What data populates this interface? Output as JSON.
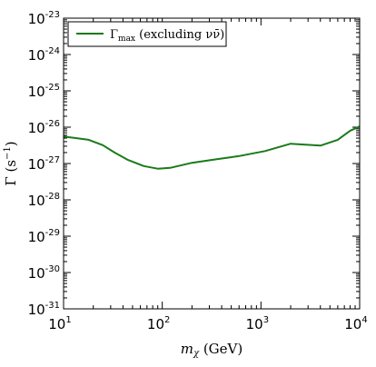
{
  "chart_data": {
    "type": "line",
    "xscale": "log",
    "yscale": "log",
    "xlim": [
      10,
      10000
    ],
    "ylim": [
      1e-31,
      1e-23
    ],
    "x_ticks": [
      {
        "base": "10",
        "exp": "1",
        "value": 10
      },
      {
        "base": "10",
        "exp": "2",
        "value": 100
      },
      {
        "base": "10",
        "exp": "3",
        "value": 1000
      },
      {
        "base": "10",
        "exp": "4",
        "value": 10000
      }
    ],
    "y_ticks": [
      {
        "base": "10",
        "exp": "-31",
        "value": 1e-31
      },
      {
        "base": "10",
        "exp": "-30",
        "value": 1e-30
      },
      {
        "base": "10",
        "exp": "-29",
        "value": 1e-29
      },
      {
        "base": "10",
        "exp": "-28",
        "value": 1e-28
      },
      {
        "base": "10",
        "exp": "-27",
        "value": 1e-27
      },
      {
        "base": "10",
        "exp": "-26",
        "value": 1e-26
      },
      {
        "base": "10",
        "exp": "-25",
        "value": 1e-25
      },
      {
        "base": "10",
        "exp": "-24",
        "value": 1e-24
      },
      {
        "base": "10",
        "exp": "-23",
        "value": 1e-23
      }
    ],
    "xlabel": {
      "var": "m",
      "sub": "χ",
      "unit": " (GeV)"
    },
    "ylabel": {
      "text": "Γ (s",
      "sup": "−1",
      "close": ")"
    },
    "legend_position": "top-left",
    "series": [
      {
        "name": "Γmax (excluding νν̄)",
        "name_main": "Γ",
        "name_sub": "max",
        "name_rest": " (excluding νν̄)",
        "color": "#1a7a1a",
        "x": [
          10,
          12,
          18,
          25,
          33,
          45,
          65,
          90,
          120,
          200,
          350,
          600,
          1100,
          2000,
          4000,
          6000,
          8000,
          10000
        ],
        "y": [
          5.5e-27,
          5.2e-27,
          4.5e-27,
          3.2e-27,
          2e-27,
          1.25e-27,
          8.5e-28,
          7.2e-28,
          7.6e-28,
          1.05e-27,
          1.3e-27,
          1.6e-27,
          2.2e-27,
          3.5e-27,
          3.1e-27,
          4.5e-27,
          8e-27,
          1.05e-26
        ]
      }
    ]
  }
}
